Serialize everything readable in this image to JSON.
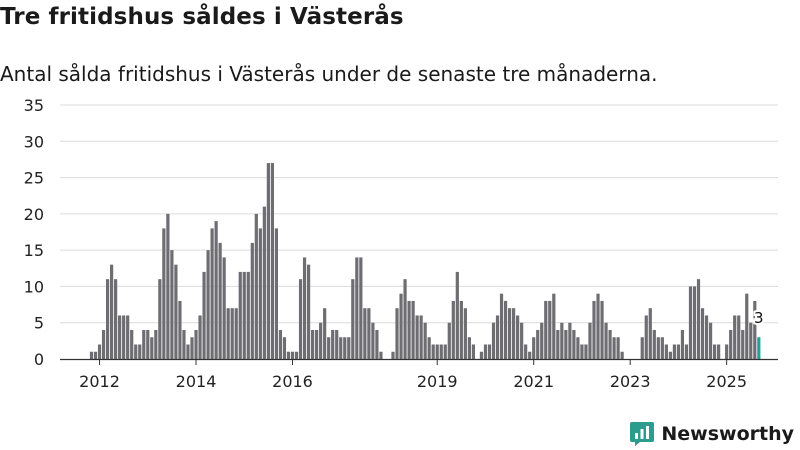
{
  "title": "Tre fritidshus såldes i Västerås",
  "subtitle": "Antal sålda fritidshus i Västerås under de senaste tre månaderna.",
  "brand": {
    "name": "Newsworthy",
    "logo_icon": "newsworthy-logo-icon"
  },
  "colors": {
    "bar": "#6e6d72",
    "highlight": "#1fa39a",
    "grid": "#dcdcdc",
    "axis": "#333333",
    "brand": "#2a9d8f"
  },
  "chart_data": {
    "type": "bar",
    "title": "Tre fritidshus såldes i Västerås",
    "xlabel": "",
    "ylabel": "",
    "ylim": [
      0,
      35
    ],
    "yticks": [
      "0",
      "5",
      "10",
      "15",
      "20",
      "25",
      "30",
      "35"
    ],
    "ytick_values": [
      0,
      5,
      10,
      15,
      20,
      25,
      30,
      35
    ],
    "xticks": [
      {
        "label": "2012",
        "index": 2
      },
      {
        "label": "2014",
        "index": 26
      },
      {
        "label": "2016",
        "index": 50
      },
      {
        "label": "2019",
        "index": 86
      },
      {
        "label": "2021",
        "index": 110
      },
      {
        "label": "2023",
        "index": 134
      },
      {
        "label": "2025",
        "index": 158
      }
    ],
    "grid": true,
    "series": [
      {
        "name": "Antal sålda fritidshus",
        "values": [
          1,
          1,
          2,
          4,
          11,
          13,
          11,
          6,
          6,
          6,
          4,
          2,
          2,
          4,
          4,
          3,
          4,
          11,
          18,
          20,
          15,
          13,
          8,
          4,
          2,
          3,
          4,
          6,
          12,
          15,
          18,
          19,
          16,
          14,
          7,
          7,
          7,
          12,
          12,
          12,
          16,
          20,
          18,
          21,
          27,
          27,
          18,
          4,
          3,
          1,
          1,
          1,
          11,
          14,
          13,
          4,
          4,
          5,
          7,
          3,
          4,
          4,
          3,
          3,
          3,
          11,
          14,
          14,
          7,
          7,
          5,
          4,
          1,
          0,
          0,
          1,
          7,
          9,
          11,
          8,
          8,
          6,
          6,
          5,
          3,
          2,
          2,
          2,
          2,
          5,
          8,
          12,
          8,
          7,
          3,
          2,
          0,
          1,
          2,
          2,
          5,
          6,
          9,
          8,
          7,
          7,
          6,
          5,
          2,
          1,
          3,
          4,
          5,
          8,
          8,
          9,
          4,
          5,
          4,
          5,
          4,
          3,
          2,
          2,
          5,
          8,
          9,
          8,
          5,
          4,
          3,
          3,
          1,
          0,
          0,
          0,
          0,
          3,
          6,
          7,
          4,
          3,
          3,
          2,
          1,
          2,
          2,
          4,
          2,
          10,
          10,
          11,
          7,
          6,
          5,
          2,
          2,
          0,
          2,
          4,
          6,
          6,
          4,
          9,
          5,
          8,
          3
        ]
      }
    ],
    "highlight_last": true,
    "annotation": "3"
  }
}
